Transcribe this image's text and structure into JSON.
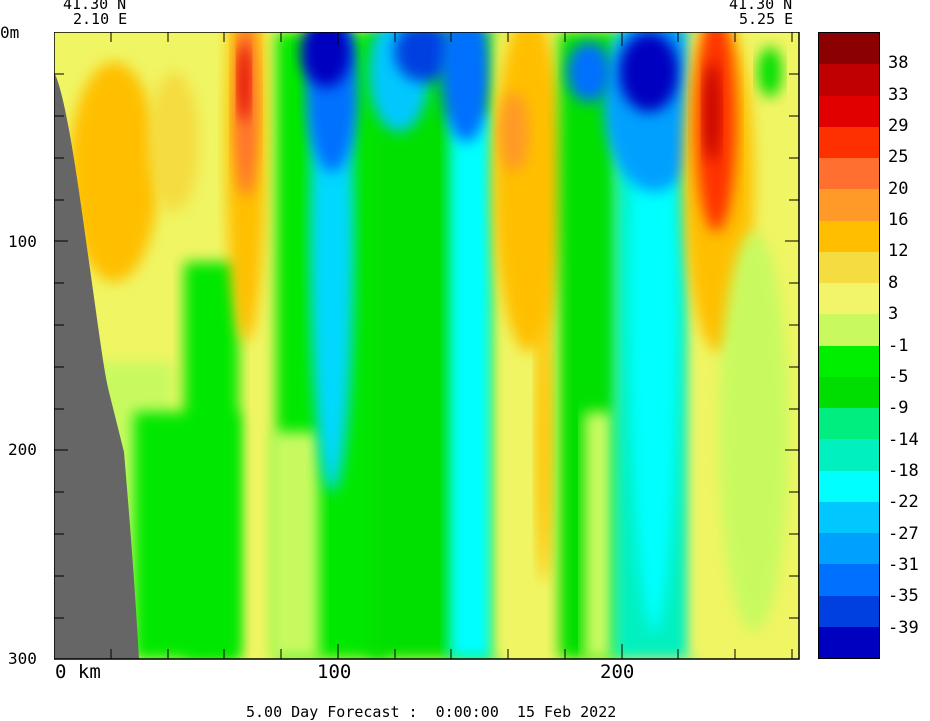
{
  "coords": {
    "left_lat": "41.30 N",
    "left_lon": "2.10 E",
    "right_lat": "41.30 N",
    "right_lon": "5.25 E"
  },
  "depth_axis": {
    "top_label": "0m",
    "ticks": [
      {
        "value": 100,
        "label": "100"
      },
      {
        "value": 200,
        "label": "200"
      },
      {
        "value": 300,
        "label": "300"
      }
    ],
    "max": 300
  },
  "distance_axis": {
    "ticks": [
      {
        "value": 0,
        "label": "0 km"
      },
      {
        "value": 100,
        "label": "100"
      },
      {
        "value": 200,
        "label": "200"
      }
    ],
    "max": 263
  },
  "footer": "5.00 Day Forecast :  0:00:00  15 Feb 2022",
  "colorbar": {
    "labels": [
      "38",
      "33",
      "29",
      "25",
      "20",
      "16",
      "12",
      "8",
      "3",
      "-1",
      "-5",
      "-9",
      "-14",
      "-18",
      "-22",
      "-27",
      "-31",
      "-35",
      "-39"
    ],
    "colors": [
      "#8b0000",
      "#c00000",
      "#e00000",
      "#ff3000",
      "#ff7030",
      "#ff9a28",
      "#ffbf00",
      "#f5dc40",
      "#f2f56a",
      "#c8fa60",
      "#00ee00",
      "#00dd00",
      "#00ee80",
      "#00f0c0",
      "#00ffff",
      "#00c8ff",
      "#00a0ff",
      "#0070ff",
      "#0040e0",
      "#0000c0"
    ]
  },
  "colors": {
    "land": "#666666",
    "background": "#f0f563"
  }
}
